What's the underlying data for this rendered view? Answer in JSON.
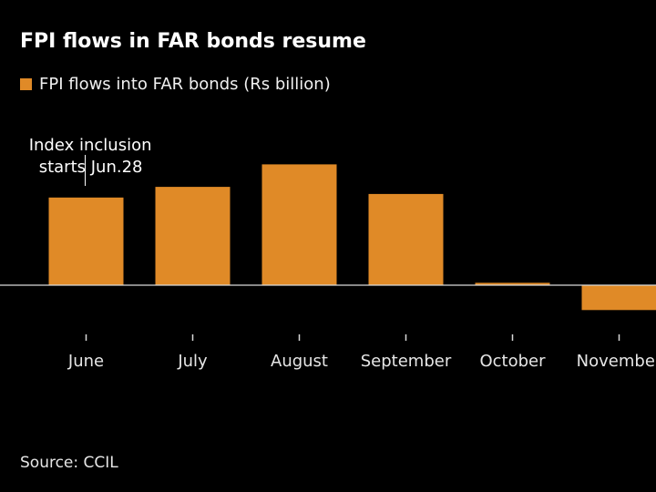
{
  "title": "FPI flows in FAR bonds resume",
  "source": "Source: CCIL",
  "colors": {
    "background": "#000000",
    "bar": "#e08a27",
    "axis": "#d9d9d9",
    "text": "#ffffff"
  },
  "chart_data": {
    "type": "bar",
    "title": "FPI flows in FAR bonds resume",
    "xlabel": "",
    "ylabel": "",
    "categories": [
      "June",
      "July",
      "August",
      "September",
      "October",
      "November"
    ],
    "series": [
      {
        "name": "FPI flows into FAR bonds (Rs billion)",
        "values": [
          148,
          166,
          204,
          154,
          4,
          -42
        ]
      }
    ],
    "ylim": [
      -75,
      240
    ],
    "grid": false,
    "legend": "top-left",
    "annotations": [
      {
        "category": "June",
        "lines": [
          "Index inclusion",
          "starts Jun.28"
        ]
      }
    ]
  }
}
